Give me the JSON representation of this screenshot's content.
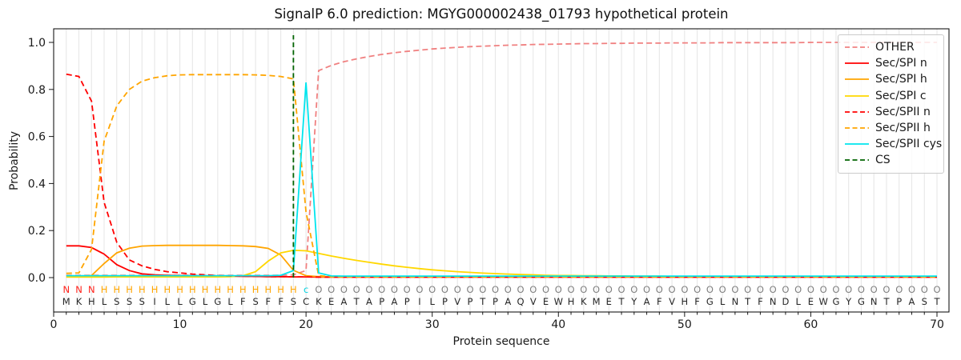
{
  "title": "SignalP 6.0 prediction: MGYG000002438_01793 hypothetical protein",
  "chart_data": {
    "type": "line",
    "title": "SignalP 6.0 prediction: MGYG000002438_01793 hypothetical protein",
    "xlabel": "Protein sequence",
    "ylabel": "Probability",
    "xlim": [
      0,
      70.9
    ],
    "ylim": [
      -0.146,
      1.058
    ],
    "xticks": [
      0,
      10,
      20,
      30,
      40,
      50,
      60,
      70
    ],
    "yticks": [
      0.0,
      0.2,
      0.4,
      0.6,
      0.8,
      1.0
    ],
    "grid": "vertical light-gray line at every residue position 1-70",
    "legend_position": "upper right",
    "x_start": 1,
    "sequence": "MKHLSSSILLGLGLFSFFSCKEATAPAPILPVPTPAQVEWHKMETYAFVHFGLNTFNDLEWGYGNTPAST",
    "region_labels": "NNNHHHHHHHHHHHHHHHHcOOOOOOOOOOOOOOOOOOOOOOOOOOOOOOOOOOOOOOOOOOOOOOOOOO",
    "region_colors": {
      "N": "#ff2019",
      "H": "#ffa500",
      "c": "#00d2e0",
      "O": "#7f7f7f"
    },
    "sequence_color": "#262626",
    "series": [
      {
        "name": "OTHER",
        "color": "#f08080",
        "dash": true,
        "values": [
          0.01,
          0.01,
          0.01,
          0.01,
          0.01,
          0.01,
          0.01,
          0.01,
          0.01,
          0.01,
          0.01,
          0.01,
          0.01,
          0.01,
          0.01,
          0.01,
          0.01,
          0.01,
          0.012,
          0.03,
          0.88,
          0.902,
          0.918,
          0.93,
          0.94,
          0.949,
          0.956,
          0.962,
          0.967,
          0.972,
          0.976,
          0.979,
          0.982,
          0.984,
          0.986,
          0.988,
          0.989,
          0.991,
          0.992,
          0.993,
          0.994,
          0.995,
          0.995,
          0.996,
          0.996,
          0.997,
          0.997,
          0.997,
          0.998,
          0.998,
          0.998,
          0.998,
          0.999,
          0.999,
          0.999,
          0.999,
          0.999,
          0.999,
          0.999,
          1.0,
          1.0,
          1.0,
          1.0,
          1.0,
          1.0,
          1.0,
          1.0,
          1.0,
          1.0,
          1.0
        ]
      },
      {
        "name": "Sec/SPI n",
        "color": "#ff0000",
        "dash": false,
        "values": [
          0.135,
          0.135,
          0.128,
          0.1,
          0.055,
          0.03,
          0.016,
          0.012,
          0.01,
          0.009,
          0.008,
          0.007,
          0.006,
          0.006,
          0.005,
          0.005,
          0.004,
          0.004,
          0.003,
          0.003,
          0.002,
          0.002,
          0.002,
          0.002,
          0.002,
          0.002,
          0.002,
          0.002,
          0.002,
          0.002,
          0.002,
          0.002,
          0.002,
          0.002,
          0.002,
          0.002,
          0.002,
          0.002,
          0.002,
          0.002,
          0.002,
          0.002,
          0.002,
          0.002,
          0.002,
          0.002,
          0.002,
          0.002,
          0.002,
          0.002,
          0.002,
          0.002,
          0.002,
          0.002,
          0.002,
          0.002,
          0.002,
          0.002,
          0.002,
          0.002,
          0.002,
          0.002,
          0.002,
          0.002,
          0.002,
          0.002,
          0.002,
          0.002,
          0.002,
          0.002
        ]
      },
      {
        "name": "Sec/SPI h",
        "color": "#ffa500",
        "dash": false,
        "values": [
          0.003,
          0.004,
          0.009,
          0.06,
          0.105,
          0.125,
          0.134,
          0.136,
          0.137,
          0.137,
          0.137,
          0.137,
          0.137,
          0.136,
          0.135,
          0.132,
          0.124,
          0.096,
          0.031,
          0.008,
          0.004,
          0.003,
          0.003,
          0.003,
          0.003,
          0.003,
          0.003,
          0.003,
          0.003,
          0.003,
          0.003,
          0.003,
          0.003,
          0.003,
          0.003,
          0.003,
          0.003,
          0.003,
          0.003,
          0.003,
          0.003,
          0.003,
          0.003,
          0.003,
          0.003,
          0.003,
          0.003,
          0.003,
          0.003,
          0.003,
          0.003,
          0.003,
          0.003,
          0.003,
          0.003,
          0.003,
          0.003,
          0.003,
          0.003,
          0.003,
          0.003,
          0.003,
          0.003,
          0.003,
          0.003,
          0.003,
          0.003,
          0.003,
          0.003,
          0.003
        ]
      },
      {
        "name": "Sec/SPI c",
        "color": "#ffd700",
        "dash": false,
        "values": [
          0.002,
          0.002,
          0.002,
          0.002,
          0.003,
          0.003,
          0.003,
          0.003,
          0.003,
          0.003,
          0.003,
          0.003,
          0.003,
          0.004,
          0.008,
          0.025,
          0.07,
          0.105,
          0.116,
          0.114,
          0.103,
          0.092,
          0.082,
          0.073,
          0.065,
          0.057,
          0.05,
          0.044,
          0.038,
          0.033,
          0.029,
          0.025,
          0.022,
          0.019,
          0.017,
          0.015,
          0.013,
          0.012,
          0.01,
          0.009,
          0.009,
          0.008,
          0.008,
          0.007,
          0.007,
          0.006,
          0.006,
          0.006,
          0.005,
          0.005,
          0.005,
          0.005,
          0.005,
          0.005,
          0.005,
          0.005,
          0.005,
          0.005,
          0.005,
          0.005,
          0.005,
          0.005,
          0.005,
          0.005,
          0.005,
          0.005,
          0.005,
          0.005,
          0.005,
          0.005
        ]
      },
      {
        "name": "Sec/SPII n",
        "color": "#ff0000",
        "dash": true,
        "values": [
          0.865,
          0.855,
          0.75,
          0.32,
          0.15,
          0.075,
          0.05,
          0.035,
          0.025,
          0.02,
          0.015,
          0.012,
          0.009,
          0.007,
          0.006,
          0.005,
          0.004,
          0.004,
          0.003,
          0.003,
          0.002,
          0.002,
          0.002,
          0.002,
          0.002,
          0.002,
          0.002,
          0.002,
          0.002,
          0.002,
          0.002,
          0.002,
          0.002,
          0.002,
          0.002,
          0.002,
          0.002,
          0.002,
          0.002,
          0.002,
          0.002,
          0.002,
          0.002,
          0.002,
          0.002,
          0.002,
          0.002,
          0.002,
          0.002,
          0.002,
          0.002,
          0.002,
          0.002,
          0.002,
          0.002,
          0.002,
          0.002,
          0.002,
          0.002,
          0.002,
          0.002,
          0.002,
          0.002,
          0.002,
          0.002,
          0.002,
          0.002,
          0.002,
          0.002,
          0.002
        ]
      },
      {
        "name": "Sec/SPII h",
        "color": "#ffa500",
        "dash": true,
        "values": [
          0.018,
          0.02,
          0.12,
          0.58,
          0.73,
          0.8,
          0.835,
          0.85,
          0.858,
          0.862,
          0.863,
          0.863,
          0.863,
          0.863,
          0.863,
          0.862,
          0.86,
          0.855,
          0.845,
          0.28,
          0.008,
          0.004,
          0.003,
          0.003,
          0.003,
          0.003,
          0.003,
          0.003,
          0.003,
          0.003,
          0.003,
          0.003,
          0.003,
          0.003,
          0.003,
          0.003,
          0.003,
          0.003,
          0.003,
          0.003,
          0.003,
          0.003,
          0.003,
          0.003,
          0.003,
          0.003,
          0.003,
          0.003,
          0.003,
          0.003,
          0.003,
          0.003,
          0.003,
          0.003,
          0.003,
          0.003,
          0.003,
          0.003,
          0.003,
          0.003,
          0.003,
          0.003,
          0.003,
          0.003,
          0.003,
          0.003,
          0.003,
          0.003,
          0.003,
          0.003
        ]
      },
      {
        "name": "Sec/SPII cys",
        "color": "#00e5ee",
        "dash": false,
        "values": [
          0.008,
          0.008,
          0.008,
          0.008,
          0.008,
          0.008,
          0.008,
          0.008,
          0.008,
          0.008,
          0.008,
          0.008,
          0.008,
          0.008,
          0.008,
          0.008,
          0.008,
          0.01,
          0.03,
          0.83,
          0.02,
          0.007,
          0.0065,
          0.0065,
          0.0065,
          0.0065,
          0.0065,
          0.0065,
          0.0065,
          0.0065,
          0.0065,
          0.0065,
          0.0065,
          0.0065,
          0.0065,
          0.0065,
          0.0065,
          0.0065,
          0.0065,
          0.0065,
          0.0065,
          0.0065,
          0.0065,
          0.0065,
          0.0065,
          0.0065,
          0.0065,
          0.0065,
          0.0065,
          0.0065,
          0.0065,
          0.0065,
          0.0065,
          0.0065,
          0.0065,
          0.0065,
          0.0065,
          0.0065,
          0.0065,
          0.0065,
          0.0065,
          0.0065,
          0.0065,
          0.0065,
          0.0065,
          0.0065,
          0.0065,
          0.0065,
          0.0065,
          0.0065
        ]
      }
    ],
    "cs_line": {
      "name": "CS",
      "x": 19,
      "color": "#006400",
      "dash": true
    }
  },
  "legend": {
    "items": [
      {
        "label": "OTHER",
        "color": "#f08080",
        "dash": true
      },
      {
        "label": "Sec/SPI n",
        "color": "#ff0000",
        "dash": false
      },
      {
        "label": "Sec/SPI h",
        "color": "#ffa500",
        "dash": false
      },
      {
        "label": "Sec/SPI c",
        "color": "#ffd700",
        "dash": false
      },
      {
        "label": "Sec/SPII n",
        "color": "#ff0000",
        "dash": true
      },
      {
        "label": "Sec/SPII h",
        "color": "#ffa500",
        "dash": true
      },
      {
        "label": "Sec/SPII cys",
        "color": "#00e5ee",
        "dash": false
      },
      {
        "label": "CS",
        "color": "#006400",
        "dash": true
      }
    ]
  }
}
